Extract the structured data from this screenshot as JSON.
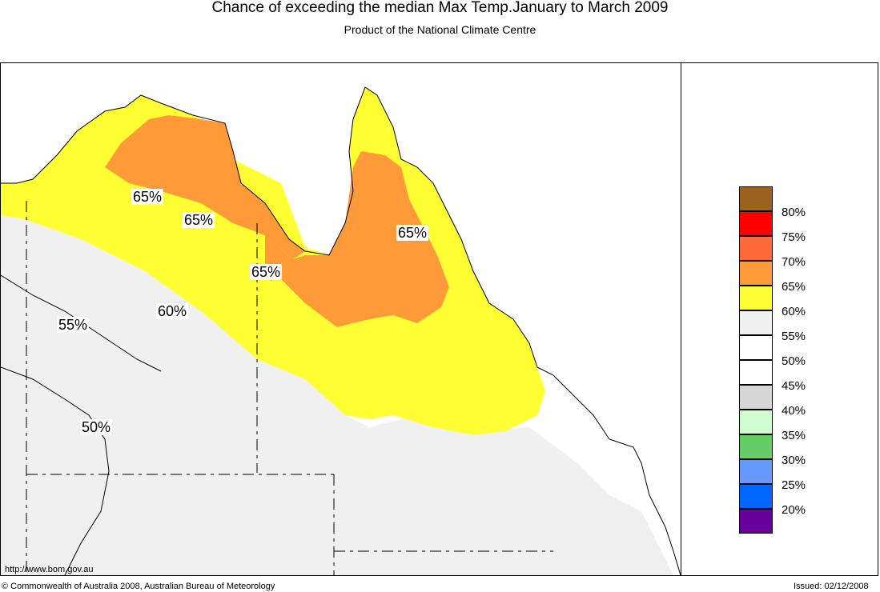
{
  "title": "Chance of exceeding the median Max Temp.January to March 2009",
  "subtitle": "Product of the National Climate Centre",
  "legend": {
    "colors": [
      "#9B621D",
      "#FF0000",
      "#FF6A3A",
      "#FF9A38",
      "#FFFF33",
      "#F0F0F0",
      "#FFFFFF",
      "#FFFFFF",
      "#D6D6D6",
      "#CFFDD0",
      "#66CC66",
      "#6699FF",
      "#0066FF",
      "#660099"
    ],
    "labels": [
      "80%",
      "75%",
      "70%",
      "65%",
      "60%",
      "55%",
      "50%",
      "45%",
      "40%",
      "35%",
      "30%",
      "25%",
      "20%"
    ]
  },
  "map_labels": {
    "l1": "65%",
    "l2": "65%",
    "l3": "65%",
    "l4": "65%",
    "l5": "60%",
    "l6": "55%",
    "l7": "50%"
  },
  "footer": {
    "url": "http://www.bom.gov.au",
    "copyright": "© Commonwealth of Australia 2008, Australian Bureau of Meteorology",
    "issued": "Issued: 02/12/2008"
  }
}
